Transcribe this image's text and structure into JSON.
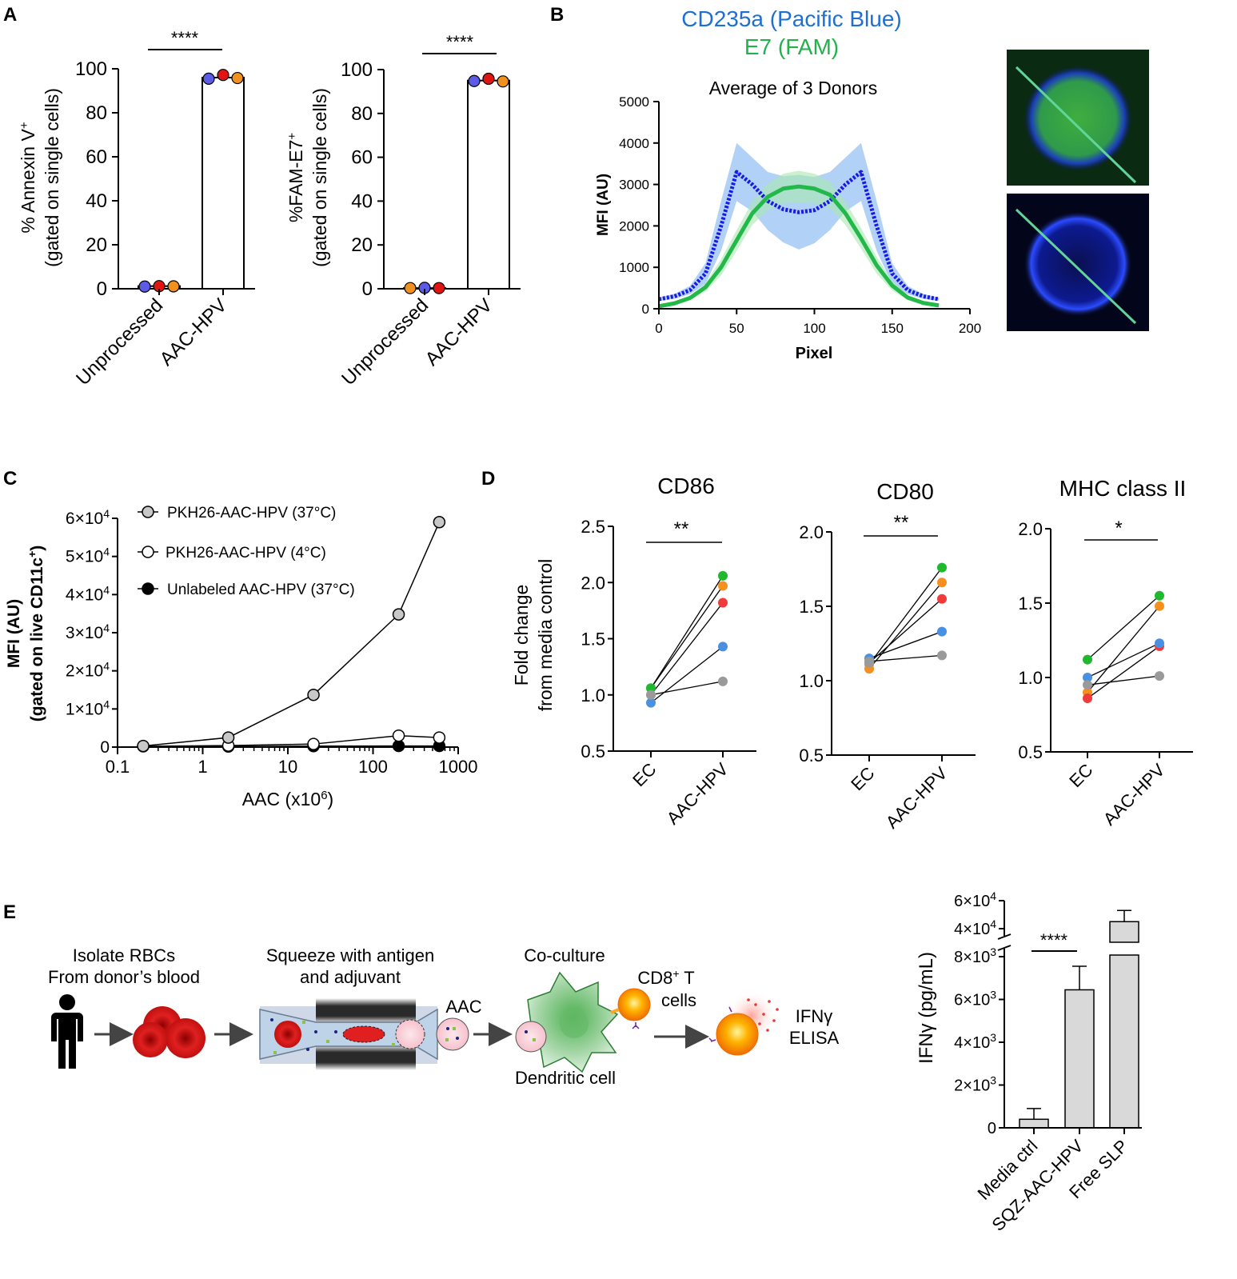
{
  "panel_letters": [
    "A",
    "B",
    "C",
    "D",
    "E"
  ],
  "colors": {
    "blue_dot": "#5b5be6",
    "red_dot": "#e11414",
    "orange_dot": "#f0901e",
    "cd235a": "#1f6fd1",
    "e7": "#22b24c",
    "profile_blue": "#1a1ae6",
    "profile_green": "#22b84a",
    "gray_bar": "#d9d9d9",
    "d_green": "#1fb82e",
    "d_orange": "#f5901e",
    "d_red": "#ef3b3b",
    "d_blue": "#4a90e2",
    "d_gray": "#9a9a9a"
  },
  "chart_data": [
    {
      "id": "A1",
      "type": "bar",
      "ylabel_line1": "% Annexin V",
      "ylabel_sup": "+",
      "ylabel_line2": "(gated on single cells)",
      "categories": [
        "Unprocessed",
        "AAC-HPV"
      ],
      "values": [
        1.2,
        96.0
      ],
      "points": [
        [
          1.0,
          1.2,
          1.1
        ],
        [
          95.5,
          97.2,
          95.8
        ]
      ],
      "yticks": [
        0,
        20,
        40,
        60,
        80,
        100
      ],
      "ylim": [
        0,
        100
      ],
      "significance": "****"
    },
    {
      "id": "A2",
      "type": "bar",
      "ylabel_line1": "%FAM-E7",
      "ylabel_sup": "+",
      "ylabel_line2": "(gated on single cells)",
      "categories": [
        "Unprocessed",
        "AAC-HPV"
      ],
      "values": [
        0.3,
        95.0
      ],
      "points": [
        [
          0.3,
          0.4,
          0.3
        ],
        [
          94.8,
          95.8,
          94.6
        ]
      ],
      "yticks": [
        0,
        20,
        40,
        60,
        80,
        100
      ],
      "ylim": [
        0,
        100
      ],
      "significance": "****"
    },
    {
      "id": "B",
      "type": "line",
      "title_line1": "CD235a (Pacific Blue)",
      "title_line2": "E7 (FAM)",
      "subtitle": "Average of 3 Donors",
      "xlabel": "Pixel",
      "ylabel": "MFI (AU)",
      "xticks": [
        0,
        50,
        100,
        150,
        200
      ],
      "yticks": [
        0,
        1000,
        2000,
        3000,
        4000,
        5000
      ],
      "xlim": [
        0,
        200
      ],
      "ylim": [
        0,
        5000
      ],
      "series": [
        {
          "x": [
            0,
            10,
            20,
            30,
            40,
            50,
            60,
            70,
            80,
            90,
            100,
            110,
            120,
            130,
            140,
            150,
            160,
            170,
            180
          ],
          "y": [
            230,
            300,
            450,
            850,
            2000,
            3300,
            3000,
            2600,
            2400,
            2330,
            2380,
            2600,
            3000,
            3300,
            2000,
            850,
            450,
            300,
            230
          ],
          "err": [
            40,
            60,
            100,
            250,
            600,
            700,
            650,
            700,
            800,
            900,
            800,
            700,
            650,
            700,
            600,
            250,
            100,
            60,
            40
          ]
        },
        {
          "x": [
            0,
            10,
            20,
            30,
            40,
            50,
            60,
            70,
            80,
            90,
            100,
            110,
            120,
            130,
            140,
            150,
            160,
            170,
            180
          ],
          "y": [
            60,
            130,
            260,
            520,
            1000,
            1650,
            2300,
            2700,
            2900,
            2950,
            2900,
            2750,
            2300,
            1700,
            1050,
            560,
            270,
            140,
            80
          ],
          "err": [
            20,
            30,
            50,
            100,
            200,
            250,
            280,
            320,
            360,
            380,
            360,
            320,
            280,
            250,
            200,
            120,
            60,
            30,
            20
          ]
        }
      ]
    },
    {
      "id": "C",
      "type": "line",
      "xlabel": "AAC (x10",
      "xlabel_sup": "6",
      "xlabel_end": ")",
      "ylabel_line1": "MFI (AU)",
      "ylabel_line2": "(gated on live CD11c",
      "ylabel_sup": "+",
      "ylabel_end": ")",
      "xscale": "log",
      "xlim": [
        0.1,
        1000
      ],
      "xticks": [
        "0.1",
        "1",
        "10",
        "100",
        "1000"
      ],
      "ylim": [
        0,
        60000
      ],
      "yticks": [
        0,
        10000,
        20000,
        30000,
        40000,
        50000,
        60000
      ],
      "ytick_labels": [
        "0",
        "1×10",
        "2×10",
        "3×10",
        "4×10",
        "5×10",
        "6×10"
      ],
      "ytick_exp": "4",
      "legend_position": "top-left",
      "series": [
        {
          "name": "PKH26-AAC-HPV (37°C)",
          "x": [
            0.2,
            2,
            20,
            200,
            600
          ],
          "y": [
            300,
            2500,
            13700,
            34800,
            59000
          ],
          "fill": "#c8c8c8"
        },
        {
          "name": "PKH26-AAC-HPV (4°C)",
          "x": [
            0.2,
            2,
            20,
            200,
            600
          ],
          "y": [
            200,
            400,
            800,
            3000,
            2500
          ],
          "fill": "#ffffff"
        },
        {
          "name": "Unlabeled AAC-HPV (37°C)",
          "x": [
            2,
            20,
            200,
            600
          ],
          "y": [
            150,
            250,
            300,
            300
          ],
          "fill": "#000000"
        }
      ]
    },
    {
      "id": "D1",
      "type": "scatter",
      "title": "CD86",
      "ylabel_line1": "Fold change",
      "ylabel_line2": "from media control",
      "categories": [
        "EC",
        "AAC-HPV"
      ],
      "ylim": [
        0.5,
        2.5
      ],
      "yticks": [
        "0.5",
        "1.0",
        "1.5",
        "2.0",
        "2.5"
      ],
      "significance": "**",
      "pairs": [
        [
          1.06,
          2.06
        ],
        [
          1.06,
          1.97
        ],
        [
          1.0,
          1.82
        ],
        [
          0.93,
          1.43
        ],
        [
          1.0,
          1.12
        ]
      ]
    },
    {
      "id": "D2",
      "type": "scatter",
      "title": "CD80",
      "categories": [
        "EC",
        "AAC-HPV"
      ],
      "ylim": [
        0.5,
        2.0
      ],
      "yticks": [
        "0.5",
        "1.0",
        "1.5",
        "2.0"
      ],
      "significance": "**",
      "pairs": [
        [
          1.11,
          1.76
        ],
        [
          1.08,
          1.66
        ],
        [
          1.12,
          1.55
        ],
        [
          1.15,
          1.33
        ],
        [
          1.13,
          1.17
        ]
      ]
    },
    {
      "id": "D3",
      "type": "scatter",
      "title": "MHC class II",
      "categories": [
        "EC",
        "AAC-HPV"
      ],
      "ylim": [
        0.5,
        2.0
      ],
      "yticks": [
        "0.5",
        "1.0",
        "1.5",
        "2.0"
      ],
      "significance": "*",
      "pairs": [
        [
          1.12,
          1.55
        ],
        [
          0.9,
          1.48
        ],
        [
          0.86,
          1.21
        ],
        [
          1.0,
          1.23
        ],
        [
          0.95,
          1.01
        ]
      ]
    },
    {
      "id": "E",
      "type": "bar",
      "ylabel": "IFNγ (pg/mL)",
      "categories": [
        "Media ctrl",
        "SQZ-AAC-HPV",
        "Free SLP"
      ],
      "values": [
        400,
        6450,
        45000
      ],
      "errors": [
        500,
        1100,
        8000
      ],
      "ytick_labels": [
        "0",
        "2×10",
        "4×10",
        "6×10",
        "8×10",
        "4×10",
        "6×10"
      ],
      "ytick_exps": [
        "",
        "3",
        "3",
        "3",
        "3",
        "4",
        "4"
      ],
      "ytick_values": [
        0,
        2000,
        4000,
        6000,
        8000,
        40000,
        60000
      ],
      "axis_break": true,
      "significance": "****"
    }
  ],
  "schematic": {
    "step1_line1": "Isolate RBCs",
    "step1_line2": "From donor’s blood",
    "step2_line1": "Squeeze with antigen",
    "step2_line2": "and adjuvant",
    "aac_label": "AAC",
    "coculture_label": "Co-culture",
    "tcell_line1": "CD8",
    "tcell_sup": "+",
    "tcell_line1_end": " T",
    "tcell_line2": "cells",
    "dc_label": "Dendritic cell",
    "elisa_line1": "IFNγ",
    "elisa_line2": "ELISA"
  }
}
